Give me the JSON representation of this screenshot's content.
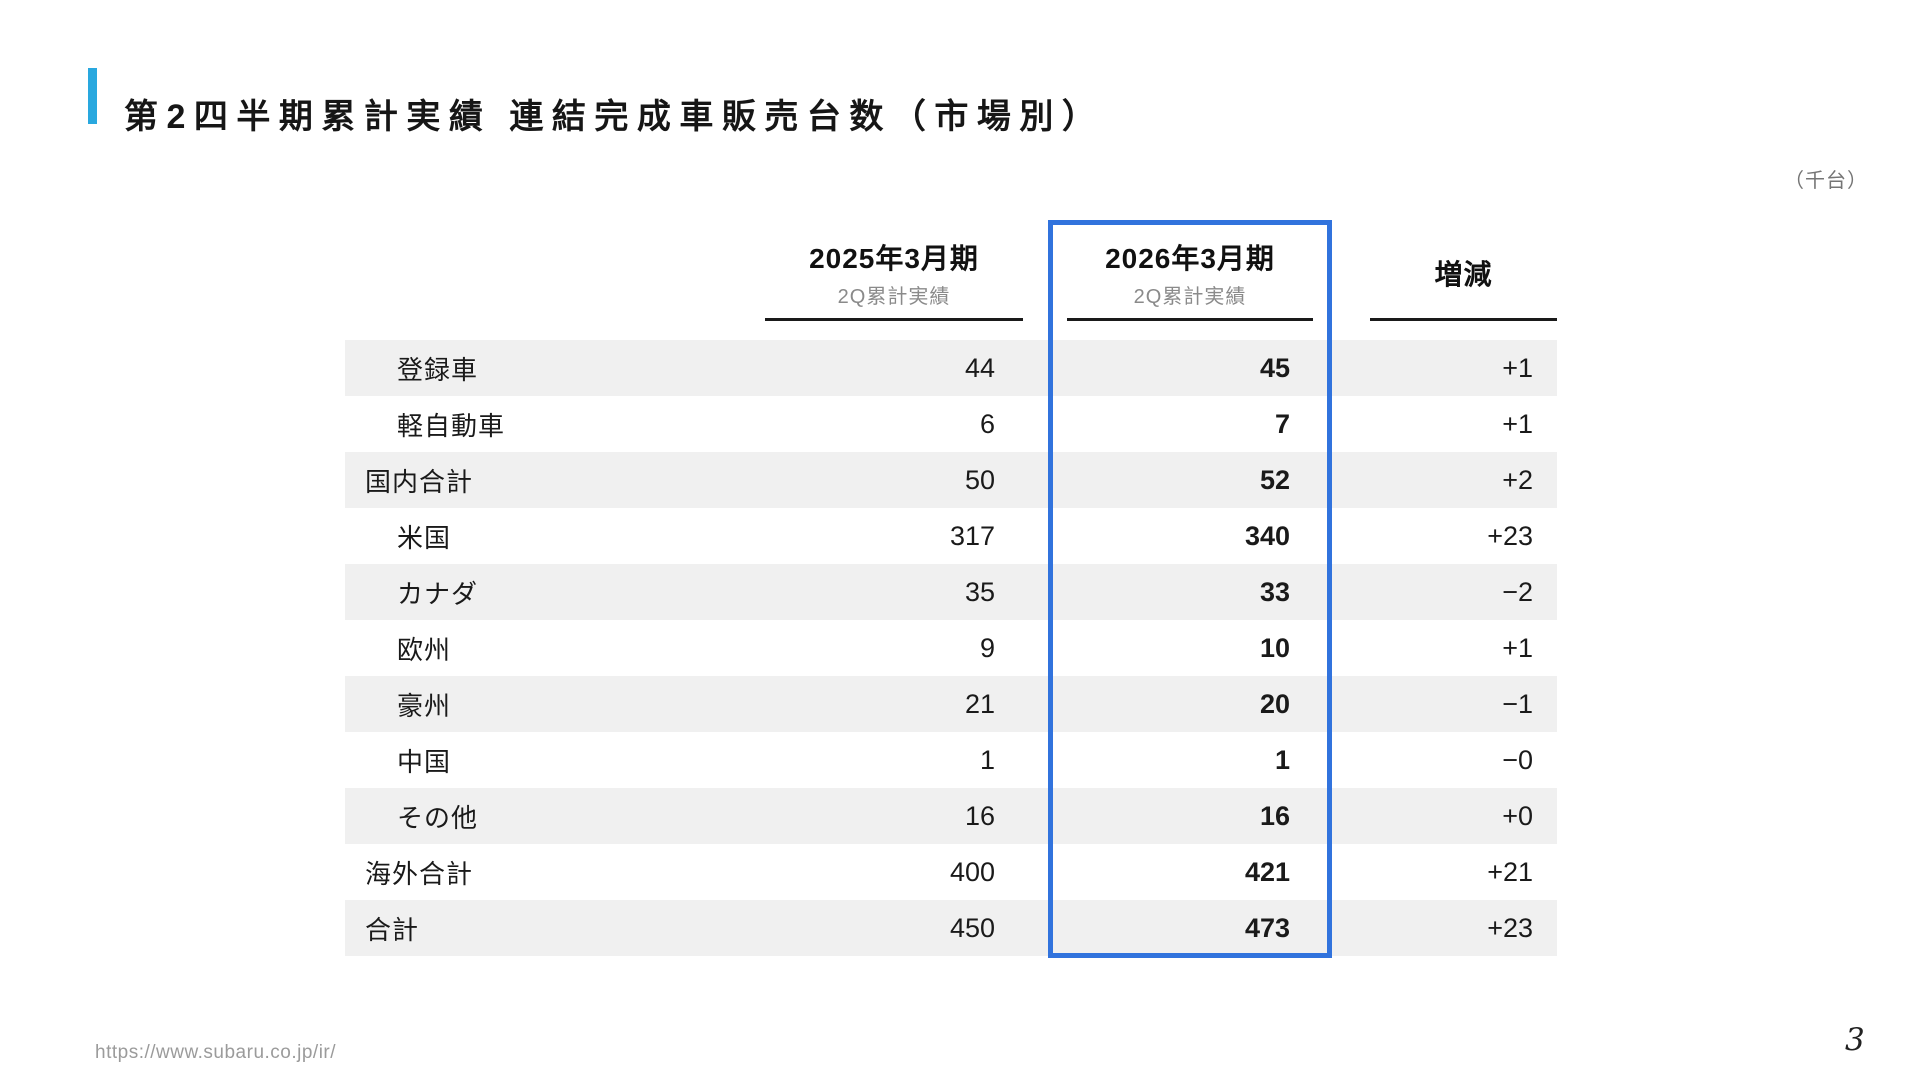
{
  "page": {
    "title": "第2四半期累計実績 連結完成車販売台数（市場別）",
    "unit_note": "（千台）",
    "footer_url": "https://www.subaru.co.jp/ir/",
    "page_number": "3"
  },
  "table": {
    "columns": [
      {
        "label": "2025年3月期",
        "sublabel": "2Q累計実績"
      },
      {
        "label": "2026年3月期",
        "sublabel": "2Q累計実績",
        "highlighted": true
      },
      {
        "label": "増減",
        "sublabel": ""
      }
    ],
    "rows": [
      {
        "label": "登録車",
        "indent": true,
        "fy2025": "44",
        "fy2026": "45",
        "change": "+1"
      },
      {
        "label": "軽自動車",
        "indent": true,
        "fy2025": "6",
        "fy2026": "7",
        "change": "+1"
      },
      {
        "label": "国内合計",
        "indent": false,
        "fy2025": "50",
        "fy2026": "52",
        "change": "+2"
      },
      {
        "label": "米国",
        "indent": true,
        "fy2025": "317",
        "fy2026": "340",
        "change": "+23"
      },
      {
        "label": "カナダ",
        "indent": true,
        "fy2025": "35",
        "fy2026": "33",
        "change": "−2"
      },
      {
        "label": "欧州",
        "indent": true,
        "fy2025": "9",
        "fy2026": "10",
        "change": "+1"
      },
      {
        "label": "豪州",
        "indent": true,
        "fy2025": "21",
        "fy2026": "20",
        "change": "−1"
      },
      {
        "label": "中国",
        "indent": true,
        "fy2025": "1",
        "fy2026": "1",
        "change": "−0"
      },
      {
        "label": "その他",
        "indent": true,
        "fy2025": "16",
        "fy2026": "16",
        "change": "+0"
      },
      {
        "label": "海外合計",
        "indent": false,
        "fy2025": "400",
        "fy2026": "421",
        "change": "+21"
      },
      {
        "label": "合計",
        "indent": false,
        "fy2025": "450",
        "fy2026": "473",
        "change": "+23"
      }
    ]
  },
  "colors": {
    "accent_bar": "#29A8DF",
    "highlight_border": "#3173DD",
    "row_stripe": "#F0F0F0"
  }
}
